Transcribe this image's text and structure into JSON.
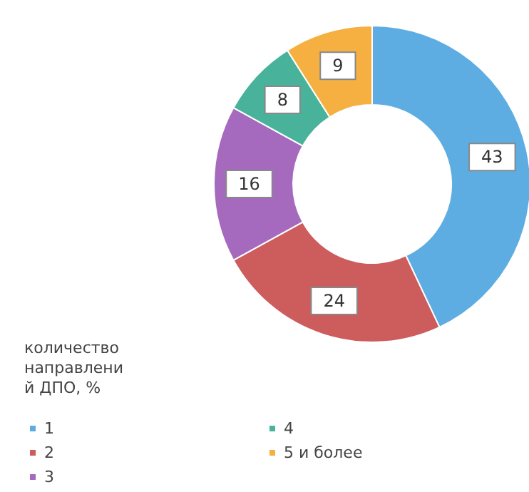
{
  "chart_data": {
    "type": "donut",
    "legend_title": "количество направлений ДПО, %",
    "categories": [
      "1",
      "2",
      "3",
      "4",
      "5 и более"
    ],
    "values": [
      43,
      24,
      16,
      8,
      9
    ],
    "colors": [
      "#5dade2",
      "#cd5c5c",
      "#a569bd",
      "#48b39a",
      "#f5b041"
    ],
    "data_labels": true,
    "legend": "bottom left"
  }
}
